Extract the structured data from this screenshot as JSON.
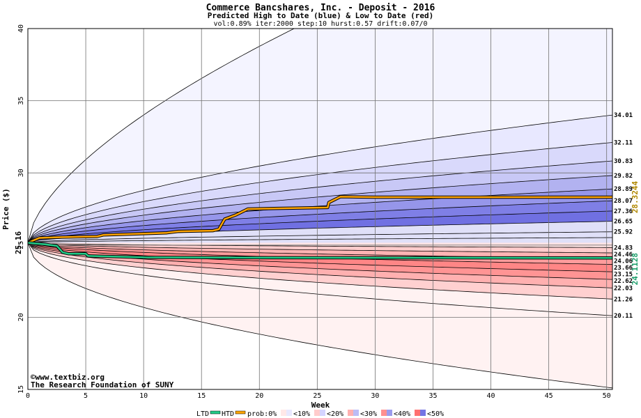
{
  "chart_data": {
    "type": "area",
    "title": "Commerce Bancshares, Inc. - Deposit - 2016",
    "subtitle": "Predicted High to Date (blue) &  Low to Date (red)",
    "params": "vol:0.89% iter:2000 step:10 hurst:0.57 drift:0.07/0",
    "xlabel": "Week",
    "ylabel": "Price ($)",
    "xlim": [
      0,
      50.5
    ],
    "ylim": [
      15,
      40
    ],
    "xticks": [
      "0",
      "5",
      "10",
      "15",
      "20",
      "25",
      "30",
      "35",
      "40",
      "45",
      "50"
    ],
    "yticks": [
      "15",
      "20",
      "25",
      "30",
      "35",
      "40"
    ],
    "start_price": 25.16,
    "start_price_label": "25.16",
    "grid": true,
    "upper_envelope_end": [
      34.01,
      32.11,
      30.83,
      29.82,
      28.89,
      28.07,
      27.36,
      26.65,
      25.92,
      25.52
    ],
    "lower_envelope_end": [
      24.83,
      24.46,
      24.06,
      23.66,
      23.15,
      22.62,
      22.03,
      21.26,
      20.11,
      15.1
    ],
    "outer_upper_end": 40.0,
    "outer_upper_reach_week": 23,
    "right_labels": [
      "34.01",
      "32.11",
      "30.83",
      "29.82",
      "28.89",
      "28.07",
      "27.36",
      "26.65",
      "25.92",
      "24.83",
      "24.46",
      "24.06",
      "23.66",
      "23.15",
      "22.62",
      "22.03",
      "21.26",
      "20.11"
    ],
    "htd_series": {
      "name": "HTD",
      "color": "#ffa500",
      "points": [
        [
          0,
          25.16
        ],
        [
          1,
          25.5
        ],
        [
          3,
          25.55
        ],
        [
          6,
          25.6
        ],
        [
          6.5,
          25.7
        ],
        [
          12,
          25.85
        ],
        [
          13,
          25.95
        ],
        [
          16,
          26.0
        ],
        [
          16.5,
          26.1
        ],
        [
          17,
          26.8
        ],
        [
          18,
          27.1
        ],
        [
          19,
          27.5
        ],
        [
          22,
          27.55
        ],
        [
          25.9,
          27.6
        ],
        [
          26,
          27.95
        ],
        [
          27,
          28.35
        ],
        [
          30,
          28.32
        ],
        [
          50.5,
          28.32
        ]
      ],
      "end_label": "28.3244"
    },
    "ltd_series": {
      "name": "LTD",
      "color": "#22cc88",
      "points": [
        [
          0,
          25.16
        ],
        [
          1.5,
          25.05
        ],
        [
          2.5,
          24.95
        ],
        [
          3,
          24.5
        ],
        [
          3.5,
          24.4
        ],
        [
          5,
          24.4
        ],
        [
          5.2,
          24.25
        ],
        [
          10,
          24.15
        ],
        [
          20,
          24.13
        ],
        [
          50.5,
          24.11
        ]
      ],
      "end_label": "24.1128"
    },
    "band_colors": {
      "upper": [
        "#f4f4ff",
        "#e8e8ff",
        "#d9d9fb",
        "#c8c8f6",
        "#b2b2f0",
        "#9696ea",
        "#7f7fe6",
        "#7070e2",
        "#e0e0f8"
      ],
      "lower": [
        "#ffe4e4",
        "#ffcccc",
        "#ffb4b4",
        "#ff9c9c",
        "#ff8686",
        "#ff9494",
        "#ffb0b0",
        "#ffd0d0",
        "#fff2f2"
      ]
    },
    "legend": {
      "ltd_label": "LTD",
      "htd_label": "HTD",
      "prob_label": "prob:0%",
      "bins": [
        "<10%",
        "<20%",
        "<30%",
        "<40%",
        "<50%"
      ],
      "bin_colors": [
        [
          "#ffe8e8",
          "#e8e8ff"
        ],
        [
          "#ffcccc",
          "#d4d4ff"
        ],
        [
          "#ffb0b0",
          "#bcbcf6"
        ],
        [
          "#ff9090",
          "#9c9cee"
        ],
        [
          "#ff7070",
          "#7474e4"
        ]
      ]
    }
  },
  "credit": {
    "copyright_symbol": "©",
    "site": "www.textbiz.org",
    "org": "The Research Foundation of SUNY"
  }
}
